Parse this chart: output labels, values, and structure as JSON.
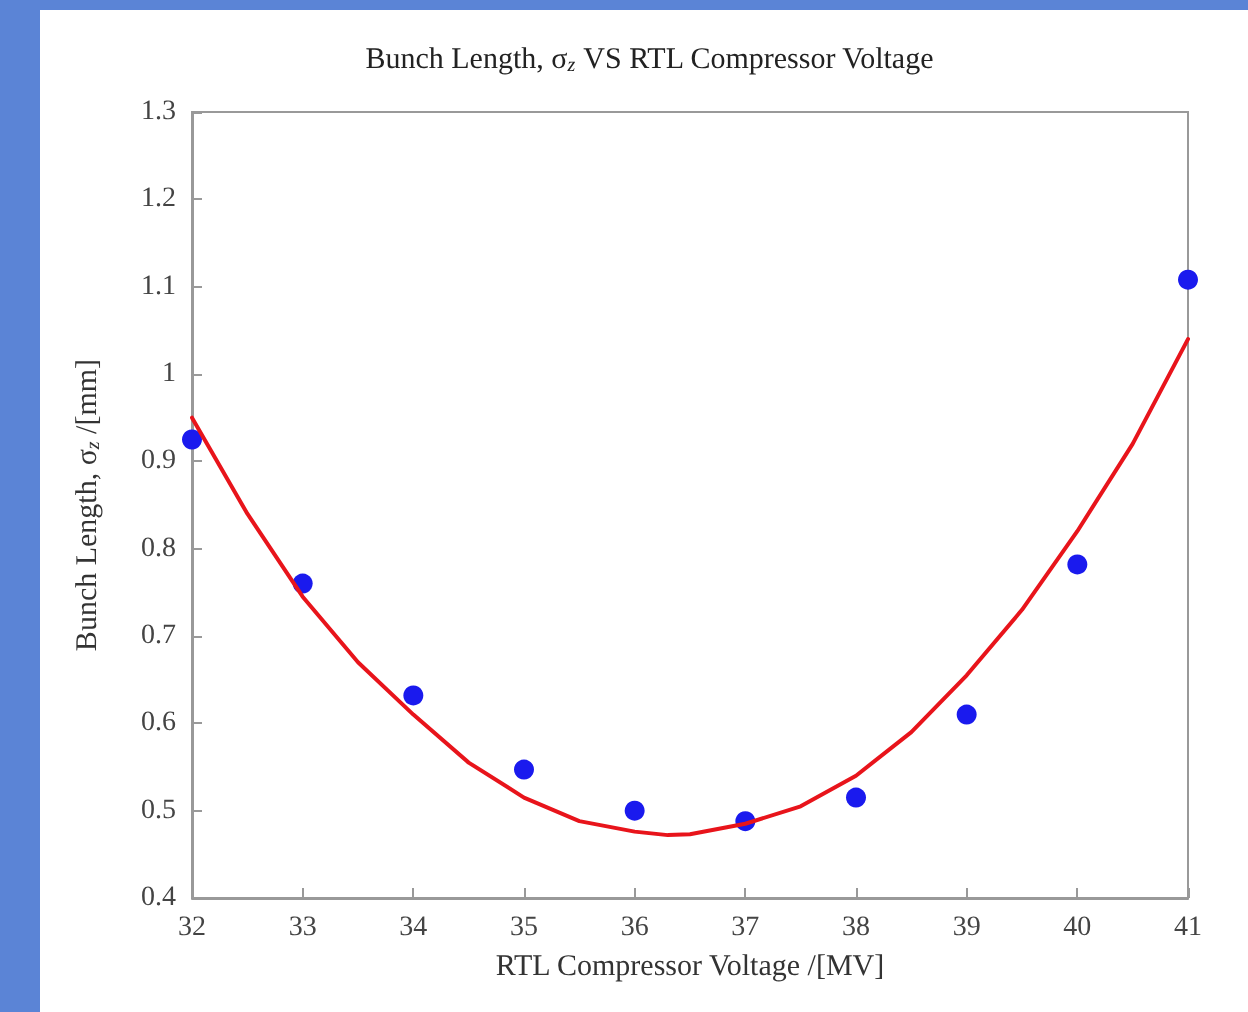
{
  "chart_data": {
    "type": "scatter",
    "title": "Bunch Length, σ$_{z}$ VS RTL Compressor Voltage",
    "xlabel": "RTL Compressor Voltage /[MV]",
    "ylabel": "Bunch Length, σ$_{z}$ /[mm]",
    "xlim": [
      32,
      41
    ],
    "xticks": [
      32,
      33,
      34,
      35,
      36,
      37,
      38,
      39,
      40,
      41
    ],
    "ylim": [
      0.4,
      1.3
    ],
    "yticks": [
      0.4,
      0.5,
      0.6,
      0.7,
      0.8,
      0.9,
      1,
      1.1,
      1.2,
      1.3
    ],
    "grid": false,
    "series": [
      {
        "type": "line",
        "color": "#e8141b",
        "marker": "none",
        "line_style": "solid",
        "x": [
          32,
          32.5,
          33,
          33.5,
          34,
          34.5,
          35,
          35.5,
          36,
          36.3,
          36.5,
          37,
          37.5,
          38,
          38.5,
          39,
          39.5,
          40,
          40.5,
          41
        ],
        "values": [
          0.95,
          0.84,
          0.745,
          0.67,
          0.61,
          0.555,
          0.515,
          0.488,
          0.476,
          0.472,
          0.473,
          0.485,
          0.505,
          0.54,
          0.59,
          0.655,
          0.73,
          0.82,
          0.92,
          1.04
        ]
      },
      {
        "color": "#1a1aee",
        "marker": "circle",
        "x": [
          32,
          33,
          34,
          35,
          36,
          37,
          38,
          39,
          40,
          41
        ],
        "values": [
          0.925,
          0.76,
          0.632,
          0.547,
          0.5,
          0.488,
          0.515,
          0.61,
          0.782,
          1.108
        ]
      }
    ]
  }
}
